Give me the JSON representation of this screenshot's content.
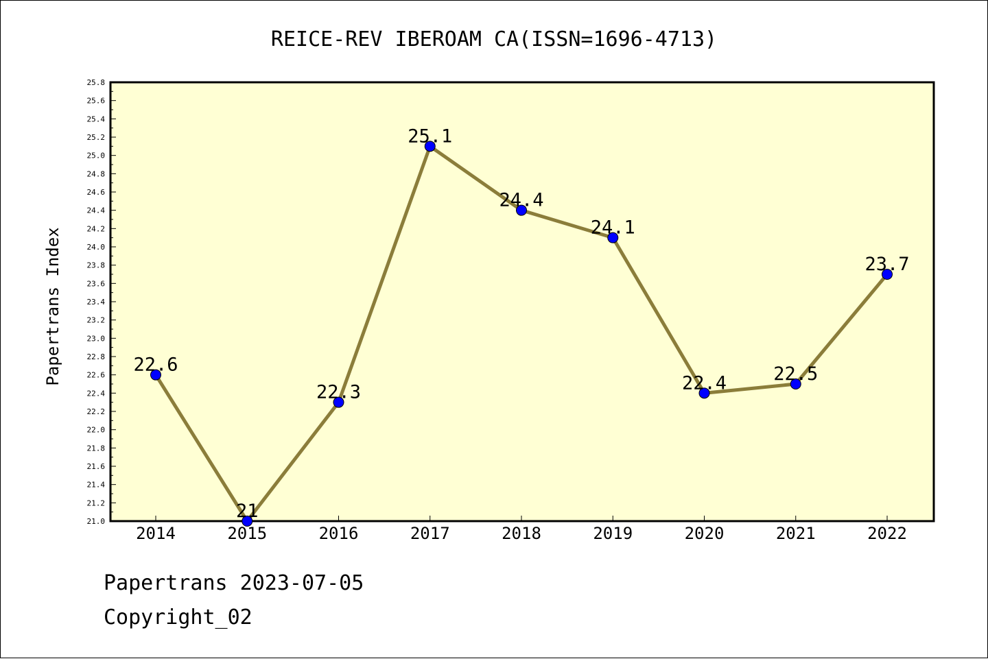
{
  "chart_data": {
    "type": "line",
    "title": "REICE-REV IBEROAM CA(ISSN=1696-4713)",
    "xlabel": "",
    "ylabel": "Papertrans Index",
    "categories": [
      "2014",
      "2015",
      "2016",
      "2017",
      "2018",
      "2019",
      "2020",
      "2021",
      "2022"
    ],
    "values": [
      22.6,
      21.0,
      22.3,
      25.1,
      24.4,
      24.1,
      22.4,
      22.5,
      23.7
    ],
    "data_labels": [
      "22.6",
      "21",
      "22.3",
      "25.1",
      "24.4",
      "24.1",
      "22.4",
      "22.5",
      "23.7"
    ],
    "ylim": [
      21.0,
      25.8
    ],
    "yticks": [
      "21.0",
      "21.2",
      "21.4",
      "21.6",
      "21.8",
      "22.0",
      "22.2",
      "22.4",
      "22.6",
      "22.8",
      "23.0",
      "23.2",
      "23.4",
      "23.6",
      "23.8",
      "24.0",
      "24.2",
      "24.4",
      "24.6",
      "24.8",
      "25.0",
      "25.2",
      "25.4",
      "25.6",
      "25.8"
    ],
    "grid": false,
    "legend": "none",
    "colors": {
      "plot_background": "#ffffd4",
      "line": "#8b7d3a",
      "marker": "#0000ff"
    }
  },
  "footer": {
    "date_line": "Papertrans 2023-07-05",
    "copyright": "Copyright_02"
  }
}
